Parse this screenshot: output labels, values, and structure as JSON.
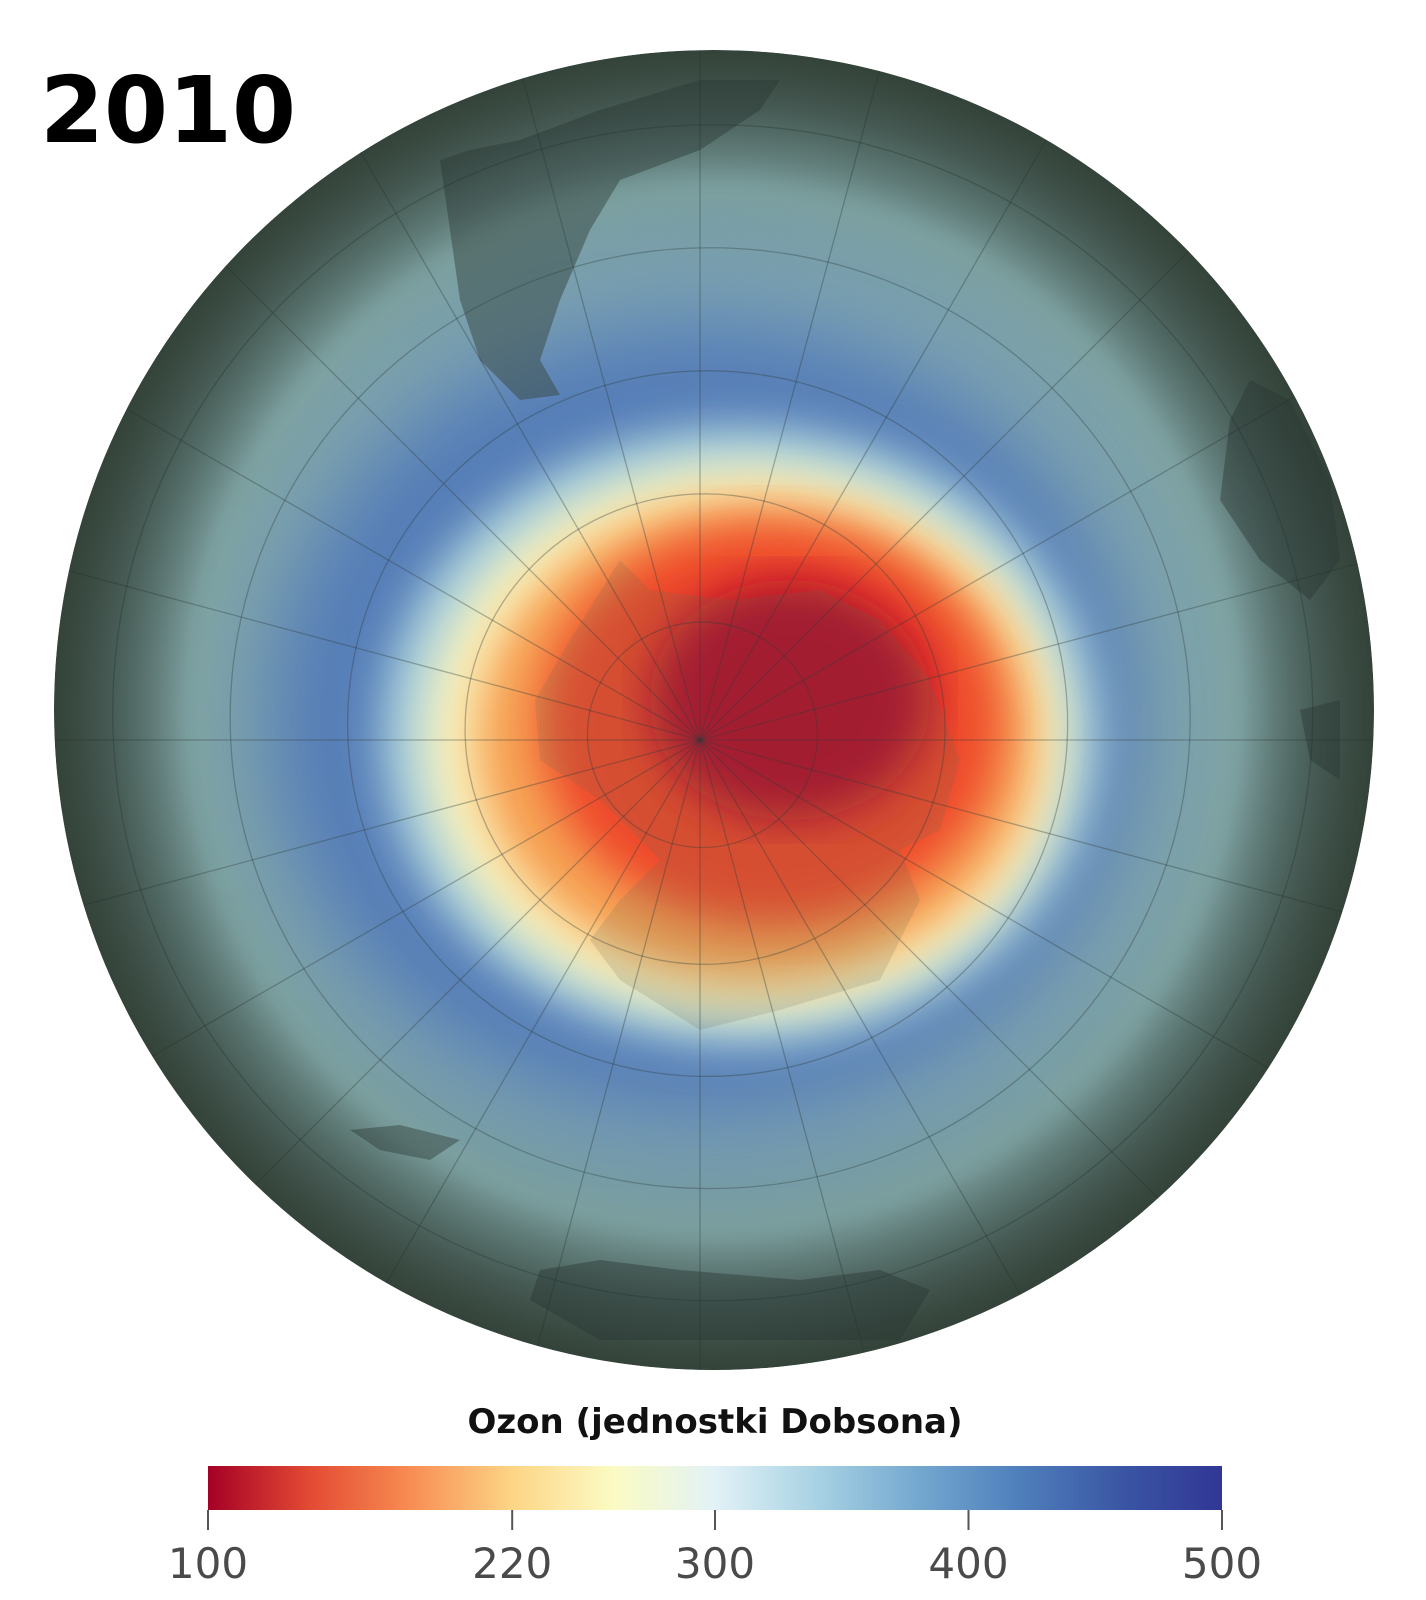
{
  "header": {
    "title": "2010"
  },
  "legend": {
    "label": "Ozon (jednostki Dobsona)",
    "range": [
      100,
      500
    ],
    "ticks": [
      100,
      220,
      300,
      400,
      500
    ],
    "colors": [
      "#a50026",
      "#e34a33",
      "#f88d52",
      "#fdd585",
      "#fbfbc4",
      "#e2f2f6",
      "#a8d2e4",
      "#74a8cf",
      "#4f7fbc",
      "#3a56a4",
      "#313695"
    ]
  }
}
